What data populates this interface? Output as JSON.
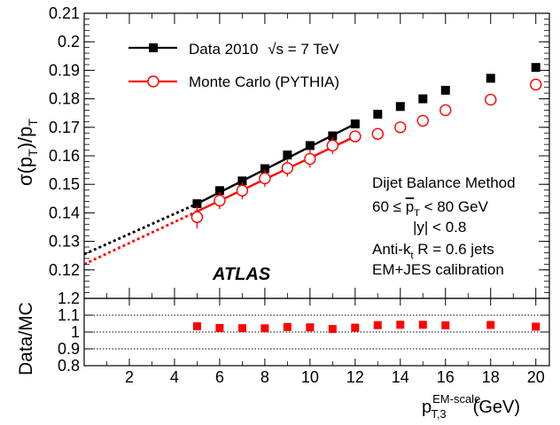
{
  "chart_data": [
    {
      "type": "scatter",
      "panel": "top",
      "ylabel": "σ(pT)/pT",
      "ylim": [
        0.11,
        0.21
      ],
      "yticks": [
        "0.12",
        "0.13",
        "0.14",
        "0.15",
        "0.16",
        "0.17",
        "0.18",
        "0.19",
        "0.2",
        "0.21"
      ],
      "xlim": [
        0,
        20.6
      ],
      "grid": false,
      "legend_placement": "top-left",
      "series": [
        {
          "name": "Data 2010   √s = 7 TeV",
          "color": "#000000",
          "marker": "filled-square",
          "x": [
            5,
            6,
            7,
            8,
            9,
            10,
            11,
            12,
            13,
            14,
            15,
            16,
            18,
            20
          ],
          "y": [
            0.1432,
            0.1478,
            0.1512,
            0.1555,
            0.1603,
            0.1636,
            0.167,
            0.1712,
            0.1746,
            0.1773,
            0.18,
            0.183,
            0.1872,
            0.191
          ],
          "yerr": [
            0.001,
            0.001,
            0.001,
            0.001,
            0.001,
            0.001,
            0.001,
            0.001,
            0.001,
            0.001,
            0.001,
            0.001,
            0.001,
            0.001
          ],
          "fit_solid": [
            [
              5,
              0.1432
            ],
            [
              12,
              0.1712
            ]
          ],
          "fit_dotted": [
            [
              0,
              0.1255
            ],
            [
              5,
              0.1432
            ]
          ]
        },
        {
          "name": "Monte Carlo (PYTHIA)",
          "color": "#ff0000",
          "marker": "open-circle",
          "x": [
            5,
            6,
            7,
            8,
            9,
            10,
            11,
            12,
            13,
            14,
            15,
            16,
            18,
            20
          ],
          "y": [
            0.1385,
            0.1443,
            0.1478,
            0.1521,
            0.1557,
            0.1589,
            0.1636,
            0.1668,
            0.1677,
            0.17,
            0.1723,
            0.176,
            0.1797,
            0.185
          ],
          "yerr": [
            0.004,
            0.003,
            0.003,
            0.003,
            0.003,
            0.003,
            0.003,
            0.002,
            0.002,
            0.002,
            0.002,
            0.002,
            0.002,
            0.002
          ],
          "fit_solid": [
            [
              5,
              0.1405
            ],
            [
              12,
              0.1668
            ]
          ],
          "fit_dotted": [
            [
              0,
              0.122
            ],
            [
              5,
              0.1405
            ]
          ]
        }
      ],
      "annotations": {
        "experiment": "ATLAS",
        "method_lines": [
          "Dijet Balance Method",
          "60 ≤ pT < 80 GeV",
          "|y| < 0.8",
          "Anti-kt R = 0.6 jets",
          "EM+JES calibration"
        ]
      }
    },
    {
      "type": "scatter",
      "panel": "bottom",
      "ylabel": "Data/MC",
      "ylim": [
        0.8,
        1.2
      ],
      "yticks": [
        "0.8",
        "0.9",
        "1",
        "1.1",
        "1.2"
      ],
      "reference_lines": [
        0.9,
        1.0,
        1.1
      ],
      "xlabel": "pT,3 EM-scale (GeV)",
      "xlim": [
        0,
        20.6
      ],
      "xticks": [
        "2",
        "4",
        "6",
        "8",
        "10",
        "12",
        "14",
        "16",
        "18",
        "20"
      ],
      "grid": false,
      "series": [
        {
          "name": "",
          "color": "#ff0000",
          "marker": "filled-square",
          "x": [
            5,
            6,
            7,
            8,
            9,
            10,
            11,
            12,
            13,
            14,
            15,
            16,
            18,
            20
          ],
          "y": [
            1.034,
            1.024,
            1.023,
            1.022,
            1.03,
            1.028,
            1.018,
            1.026,
            1.041,
            1.043,
            1.043,
            1.04,
            1.042,
            1.032
          ]
        }
      ]
    }
  ]
}
